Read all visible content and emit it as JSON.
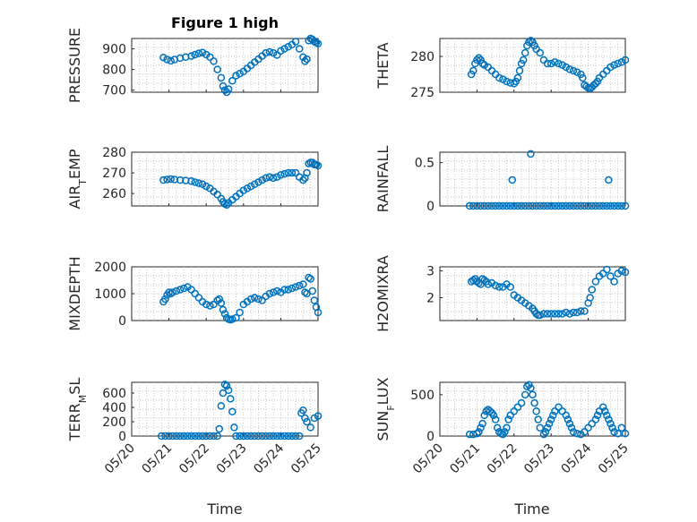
{
  "figure": {
    "title": "Figure 1 high",
    "xlabel": "Time",
    "x_ticks": [
      "05/20",
      "05/21",
      "05/22",
      "05/23",
      "05/24",
      "05/25"
    ],
    "marker_color": "#0072BD"
  },
  "chart_data": [
    {
      "type": "scatter",
      "panel": "pressure",
      "ylabel": "PRESSURE",
      "xlim": [
        0,
        5
      ],
      "ylim": [
        690,
        950
      ],
      "yticks": [
        700,
        800,
        900
      ],
      "x": [
        0.85,
        0.95,
        1.05,
        1.15,
        1.3,
        1.45,
        1.6,
        1.7,
        1.8,
        1.9,
        2.0,
        2.1,
        2.2,
        2.3,
        2.4,
        2.45,
        2.5,
        2.55,
        2.6,
        2.7,
        2.8,
        2.9,
        3.0,
        3.1,
        3.2,
        3.3,
        3.4,
        3.5,
        3.6,
        3.7,
        3.8,
        3.9,
        4.0,
        4.1,
        4.2,
        4.3,
        4.4,
        4.5,
        4.6,
        4.65,
        4.7,
        4.75,
        4.8,
        4.85,
        4.9,
        4.95,
        5.0
      ],
      "y": [
        858,
        848,
        842,
        848,
        855,
        860,
        865,
        872,
        878,
        882,
        872,
        860,
        840,
        800,
        760,
        720,
        700,
        690,
        705,
        745,
        770,
        780,
        790,
        805,
        820,
        835,
        850,
        865,
        880,
        885,
        880,
        870,
        890,
        900,
        910,
        920,
        935,
        900,
        860,
        840,
        850,
        940,
        950,
        945,
        935,
        930,
        925
      ]
    },
    {
      "type": "scatter",
      "panel": "theta",
      "ylabel": "THETA",
      "xlim": [
        0,
        5
      ],
      "ylim": [
        275,
        282.5
      ],
      "yticks": [
        275,
        280
      ],
      "x": [
        0.85,
        0.9,
        0.95,
        1.0,
        1.05,
        1.1,
        1.15,
        1.2,
        1.3,
        1.4,
        1.5,
        1.6,
        1.7,
        1.8,
        1.9,
        2.0,
        2.05,
        2.1,
        2.15,
        2.2,
        2.25,
        2.3,
        2.35,
        2.4,
        2.45,
        2.5,
        2.55,
        2.6,
        2.7,
        2.8,
        2.9,
        3.0,
        3.1,
        3.2,
        3.3,
        3.4,
        3.5,
        3.6,
        3.7,
        3.8,
        3.85,
        3.9,
        3.95,
        4.0,
        4.05,
        4.1,
        4.15,
        4.2,
        4.25,
        4.3,
        4.4,
        4.5,
        4.6,
        4.7,
        4.8,
        4.9,
        5.0
      ],
      "y": [
        277.5,
        278,
        279,
        279.5,
        279.8,
        279.5,
        279,
        278.8,
        278.5,
        278,
        277.5,
        277,
        276.8,
        276.5,
        276.3,
        276.2,
        276.5,
        277,
        278,
        279,
        279.5,
        280.5,
        281.5,
        282,
        282.2,
        282,
        281.5,
        281,
        280.5,
        279.5,
        279,
        279,
        279.2,
        279,
        278.8,
        278.5,
        278.2,
        278,
        277.8,
        277.5,
        277,
        276,
        275.8,
        275.6,
        275.5,
        275.7,
        276,
        276.2,
        276.5,
        277,
        277.5,
        278,
        278.5,
        278.8,
        279,
        279.2,
        279.5
      ]
    },
    {
      "type": "scatter",
      "panel": "air_temp",
      "ylabel": "AIR_TEMP",
      "xlim": [
        0,
        5
      ],
      "ylim": [
        254,
        280
      ],
      "yticks": [
        260,
        270,
        280
      ],
      "x": [
        0.85,
        0.95,
        1.05,
        1.15,
        1.3,
        1.45,
        1.6,
        1.7,
        1.8,
        1.9,
        2.0,
        2.1,
        2.2,
        2.3,
        2.4,
        2.45,
        2.5,
        2.55,
        2.6,
        2.7,
        2.8,
        2.9,
        3.0,
        3.1,
        3.2,
        3.3,
        3.4,
        3.5,
        3.6,
        3.7,
        3.8,
        3.9,
        4.0,
        4.1,
        4.2,
        4.3,
        4.4,
        4.5,
        4.6,
        4.65,
        4.7,
        4.75,
        4.8,
        4.85,
        4.9,
        4.95,
        5.0
      ],
      "y": [
        266.5,
        266.8,
        267,
        266.8,
        266.5,
        266.3,
        266,
        265.5,
        265,
        264.5,
        263.5,
        262.5,
        261,
        259.5,
        257.5,
        256,
        255,
        254.5,
        255.5,
        257,
        258.5,
        260,
        261.5,
        262.5,
        263.5,
        264.5,
        265.5,
        266.5,
        267.5,
        268,
        267.5,
        268,
        269,
        269.5,
        270,
        270,
        270,
        268,
        266.5,
        267.5,
        270,
        274.5,
        275,
        275,
        274,
        274,
        273.5
      ]
    },
    {
      "type": "scatter",
      "panel": "rainfall",
      "ylabel": "RAINFALL",
      "xlim": [
        0,
        5
      ],
      "ylim": [
        0,
        0.62
      ],
      "yticks": [
        0,
        0.5
      ],
      "x": [
        0.8,
        0.9,
        1.0,
        1.1,
        1.2,
        1.3,
        1.4,
        1.5,
        1.6,
        1.7,
        1.8,
        1.9,
        2.0,
        2.1,
        2.2,
        2.3,
        2.4,
        2.5,
        2.6,
        2.7,
        2.8,
        2.9,
        3.0,
        3.1,
        3.2,
        3.3,
        3.4,
        3.5,
        3.6,
        3.7,
        3.8,
        3.9,
        4.0,
        4.1,
        4.2,
        4.3,
        4.4,
        4.5,
        4.6,
        4.7,
        4.8,
        4.9,
        5.0,
        1.95,
        2.45,
        4.55
      ],
      "y": [
        0,
        0,
        0,
        0,
        0,
        0,
        0,
        0,
        0,
        0,
        0,
        0,
        0,
        0,
        0,
        0,
        0,
        0,
        0,
        0,
        0,
        0,
        0,
        0,
        0,
        0,
        0,
        0,
        0,
        0,
        0,
        0,
        0,
        0,
        0,
        0,
        0,
        0,
        0,
        0,
        0,
        0,
        0,
        0.3,
        0.6,
        0.3
      ]
    },
    {
      "type": "scatter",
      "panel": "mixdepth",
      "ylabel": "MIXDEPTH",
      "xlim": [
        0,
        5
      ],
      "ylim": [
        0,
        2000
      ],
      "yticks": [
        0,
        1000,
        2000
      ],
      "x": [
        0.85,
        0.9,
        0.95,
        1.0,
        1.05,
        1.1,
        1.2,
        1.3,
        1.4,
        1.5,
        1.6,
        1.7,
        1.8,
        1.9,
        2.0,
        2.1,
        2.2,
        2.3,
        2.35,
        2.4,
        2.45,
        2.5,
        2.55,
        2.6,
        2.65,
        2.7,
        2.8,
        2.9,
        3.0,
        3.1,
        3.2,
        3.3,
        3.4,
        3.5,
        3.6,
        3.7,
        3.8,
        3.9,
        4.0,
        4.1,
        4.2,
        4.3,
        4.4,
        4.5,
        4.6,
        4.65,
        4.7,
        4.75,
        4.8,
        4.85,
        4.9,
        4.95,
        5.0
      ],
      "y": [
        700,
        800,
        950,
        1050,
        1000,
        1050,
        1100,
        1150,
        1200,
        1250,
        1150,
        1000,
        850,
        700,
        600,
        550,
        600,
        750,
        800,
        650,
        400,
        250,
        100,
        50,
        30,
        50,
        100,
        300,
        600,
        700,
        800,
        850,
        800,
        750,
        900,
        1000,
        1050,
        1100,
        1050,
        1150,
        1150,
        1200,
        1250,
        1300,
        1350,
        1050,
        1000,
        1600,
        1550,
        1100,
        750,
        500,
        300
      ]
    },
    {
      "type": "scatter",
      "panel": "h2omixra",
      "ylabel": "H2OMIXRA",
      "xlim": [
        0,
        5
      ],
      "ylim": [
        1.15,
        3.15
      ],
      "yticks": [
        2,
        3
      ],
      "x": [
        0.85,
        0.9,
        0.95,
        1.0,
        1.05,
        1.1,
        1.15,
        1.2,
        1.25,
        1.3,
        1.4,
        1.5,
        1.6,
        1.7,
        1.8,
        1.9,
        2.0,
        2.1,
        2.2,
        2.3,
        2.4,
        2.5,
        2.55,
        2.6,
        2.65,
        2.7,
        2.8,
        2.9,
        3.0,
        3.1,
        3.2,
        3.3,
        3.4,
        3.5,
        3.6,
        3.7,
        3.8,
        3.9,
        4.0,
        4.05,
        4.1,
        4.2,
        4.3,
        4.4,
        4.5,
        4.6,
        4.7,
        4.8,
        4.9,
        5.0
      ],
      "y": [
        2.6,
        2.65,
        2.7,
        2.6,
        2.55,
        2.5,
        2.7,
        2.65,
        2.6,
        2.5,
        2.55,
        2.45,
        2.4,
        2.4,
        2.5,
        2.4,
        2.1,
        2.0,
        1.9,
        1.8,
        1.7,
        1.6,
        1.5,
        1.4,
        1.35,
        1.35,
        1.4,
        1.4,
        1.4,
        1.4,
        1.4,
        1.4,
        1.45,
        1.4,
        1.45,
        1.45,
        1.5,
        1.5,
        1.8,
        2.0,
        2.3,
        2.6,
        2.8,
        2.9,
        3.05,
        2.8,
        2.6,
        2.9,
        3.0,
        2.95
      ]
    },
    {
      "type": "scatter",
      "panel": "terr_msl",
      "ylabel": "TERR_MSL",
      "xlim": [
        0,
        5
      ],
      "ylim": [
        0,
        750
      ],
      "yticks": [
        0,
        200,
        400,
        600
      ],
      "x": [
        0.8,
        0.9,
        1.0,
        1.1,
        1.2,
        1.3,
        1.4,
        1.5,
        1.6,
        1.7,
        1.8,
        1.9,
        2.0,
        2.1,
        2.2,
        2.3,
        2.35,
        2.4,
        2.45,
        2.5,
        2.55,
        2.6,
        2.65,
        2.7,
        2.75,
        2.8,
        2.9,
        3.0,
        3.1,
        3.2,
        3.3,
        3.4,
        3.5,
        3.6,
        3.7,
        3.8,
        3.9,
        4.0,
        4.1,
        4.2,
        4.3,
        4.4,
        4.5,
        4.55,
        4.6,
        4.65,
        4.7,
        4.8,
        4.9,
        5.0
      ],
      "y": [
        0,
        0,
        0,
        0,
        0,
        0,
        0,
        0,
        0,
        0,
        0,
        0,
        0,
        0,
        0,
        0,
        100,
        420,
        600,
        720,
        700,
        640,
        520,
        340,
        120,
        0,
        0,
        0,
        0,
        0,
        0,
        0,
        0,
        0,
        0,
        0,
        0,
        0,
        0,
        0,
        0,
        0,
        0,
        320,
        360,
        250,
        200,
        120,
        250,
        280
      ]
    },
    {
      "type": "scatter",
      "panel": "sun_flux",
      "ylabel": "SUN_FLUX",
      "xlim": [
        0,
        5
      ],
      "ylim": [
        0,
        650
      ],
      "yticks": [
        0,
        500
      ],
      "x": [
        0.8,
        0.9,
        1.0,
        1.05,
        1.1,
        1.15,
        1.2,
        1.25,
        1.3,
        1.35,
        1.4,
        1.45,
        1.5,
        1.55,
        1.6,
        1.65,
        1.7,
        1.75,
        1.8,
        1.85,
        1.9,
        2.0,
        2.1,
        2.2,
        2.3,
        2.35,
        2.4,
        2.45,
        2.5,
        2.55,
        2.6,
        2.65,
        2.7,
        2.8,
        2.85,
        2.9,
        2.95,
        3.0,
        3.05,
        3.1,
        3.2,
        3.3,
        3.4,
        3.45,
        3.5,
        3.55,
        3.6,
        3.7,
        3.8,
        3.9,
        4.0,
        4.1,
        4.2,
        4.25,
        4.3,
        4.4,
        4.45,
        4.5,
        4.55,
        4.6,
        4.65,
        4.7,
        4.8,
        4.9,
        5.0
      ],
      "y": [
        20,
        20,
        30,
        50,
        100,
        150,
        250,
        300,
        320,
        300,
        280,
        250,
        200,
        100,
        50,
        30,
        20,
        50,
        100,
        200,
        250,
        300,
        350,
        400,
        500,
        600,
        620,
        580,
        500,
        400,
        300,
        200,
        100,
        20,
        50,
        100,
        150,
        200,
        250,
        300,
        350,
        300,
        250,
        200,
        150,
        100,
        50,
        30,
        20,
        50,
        100,
        150,
        200,
        250,
        300,
        350,
        300,
        250,
        200,
        150,
        100,
        50,
        30,
        100,
        30
      ]
    }
  ]
}
